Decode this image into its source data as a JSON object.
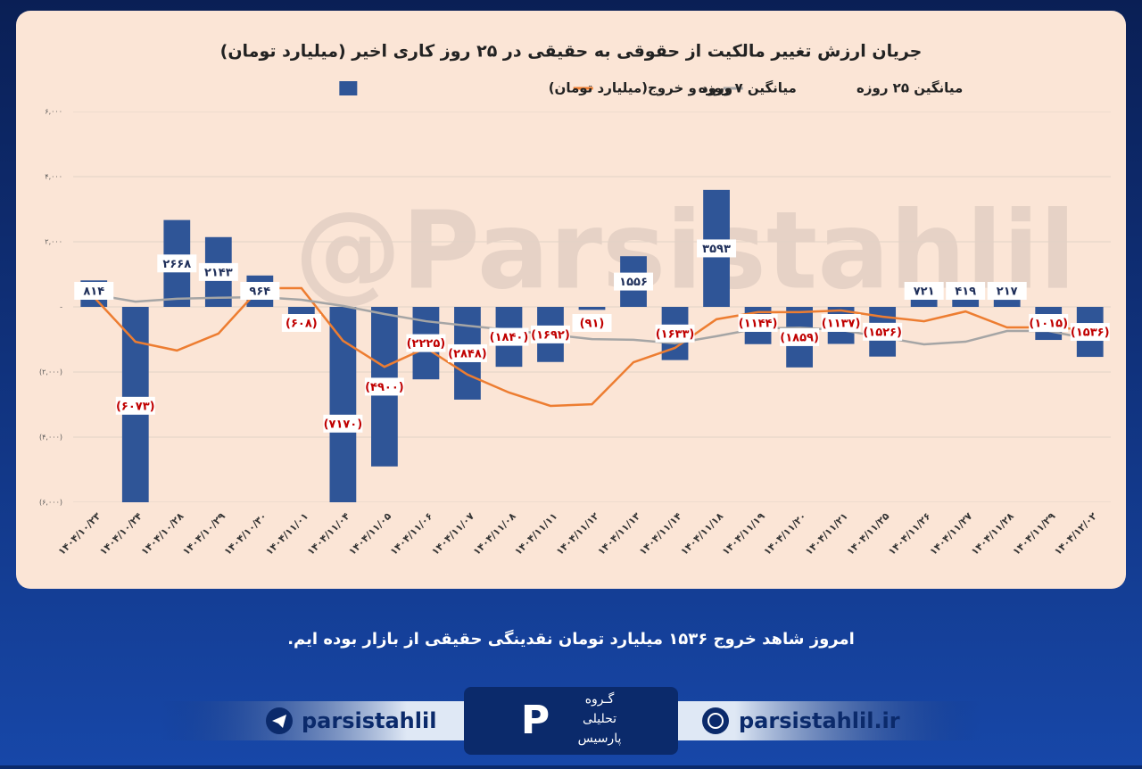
{
  "chart_data": {
    "type": "bar",
    "title": "جریان ارزش تغییر مالکیت از حقوقی به حقیقی در ۲۵ روز کاری اخیر (میلیارد تومان)",
    "watermark": "@Parsistahlil",
    "categories": [
      "۱۴۰۴/۱۰/۲۳",
      "۱۴۰۴/۱۰/۲۴",
      "۱۴۰۴/۱۰/۲۸",
      "۱۴۰۴/۱۰/۲۹",
      "۱۴۰۴/۱۰/۳۰",
      "۱۴۰۴/۱۱/۰۱",
      "۱۴۰۴/۱۱/۰۴",
      "۱۴۰۴/۱۱/۰۵",
      "۱۴۰۴/۱۱/۰۶",
      "۱۴۰۴/۱۱/۰۷",
      "۱۴۰۴/۱۱/۰۸",
      "۱۴۰۴/۱۱/۱۱",
      "۱۴۰۴/۱۱/۱۲",
      "۱۴۰۴/۱۱/۱۳",
      "۱۴۰۴/۱۱/۱۴",
      "۱۴۰۴/۱۱/۱۸",
      "۱۴۰۴/۱۱/۱۹",
      "۱۴۰۴/۱۱/۲۰",
      "۱۴۰۴/۱۱/۲۱",
      "۱۴۰۴/۱۱/۲۵",
      "۱۴۰۴/۱۱/۲۶",
      "۱۴۰۴/۱۱/۲۷",
      "۱۴۰۴/۱۱/۲۸",
      "۱۴۰۴/۱۱/۲۹",
      "۱۴۰۴/۱۲/۰۲"
    ],
    "series": [
      {
        "name": "ورود و خروج(میلیارد تومان)",
        "type": "bar",
        "color": "#2f5597",
        "values": [
          814,
          -6073,
          2668,
          2143,
          964,
          -608,
          -7170,
          -4900,
          -2225,
          -2848,
          -1840,
          -1692,
          -91,
          1556,
          -1633,
          3593,
          -1144,
          -1859,
          -1137,
          -1526,
          721,
          419,
          217,
          -1015,
          -1536
        ],
        "value_labels": [
          "۸۱۴",
          "(۶۰۷۳)",
          "۲۶۶۸",
          "۲۱۴۳",
          "۹۶۴",
          "(۶۰۸)",
          "(۷۱۷۰)",
          "(۴۹۰۰)",
          "(۲۲۲۵)",
          "(۲۸۴۸)",
          "(۱۸۴۰)",
          "(۱۶۹۲)",
          "(۹۱)",
          "۱۵۵۶",
          "(۱۶۳۳)",
          "۳۵۹۳",
          "(۱۱۴۴)",
          "(۱۸۵۹)",
          "(۱۱۳۷)",
          "(۱۵۲۶)",
          "۷۲۱",
          "۴۱۹",
          "۲۱۷",
          "(۱۰۱۵)",
          "(۱۵۳۶)"
        ]
      },
      {
        "name": "میانگین ۷ روزه",
        "type": "line",
        "color": "#ed7d31",
        "values": [
          300,
          -1070,
          -1340,
          -820,
          575,
          575,
          -1040,
          -1840,
          -1260,
          -2080,
          -2630,
          -3040,
          -2990,
          -1700,
          -1260,
          -380,
          -160,
          -160,
          -110,
          -300,
          -440,
          -140,
          -630,
          -630,
          -700
        ]
      },
      {
        "name": "میانگین ۲۵ روزه",
        "type": "line",
        "color": "#a5a5a5",
        "values": [
          380,
          160,
          250,
          280,
          300,
          220,
          30,
          -220,
          -440,
          -580,
          -710,
          -850,
          -990,
          -1010,
          -1120,
          -900,
          -660,
          -640,
          -710,
          -930,
          -1150,
          -1070,
          -740,
          -740,
          -990
        ]
      }
    ],
    "ylim": [
      -6000,
      6000
    ],
    "yticks": [
      {
        "value": -6000,
        "label": "(۶,۰۰۰)"
      },
      {
        "value": -4000,
        "label": "(۴,۰۰۰)"
      },
      {
        "value": -2000,
        "label": "(۲,۰۰۰)"
      },
      {
        "value": 0,
        "label": "-"
      },
      {
        "value": 2000,
        "label": "۲,۰۰۰"
      },
      {
        "value": 4000,
        "label": "۴,۰۰۰"
      },
      {
        "value": 6000,
        "label": "۶,۰۰۰"
      }
    ],
    "grid": true
  },
  "footer": {
    "message": "امروز شاهد خروج ۱۵۳۶ میلیارد تومان نقدینگی حقیقی از بازار بوده ایم.",
    "telegram": "parsistahlil",
    "website": "parsistahlil.ir",
    "logo": [
      "گـروه",
      "تحلیلی",
      "پارسیس"
    ]
  }
}
